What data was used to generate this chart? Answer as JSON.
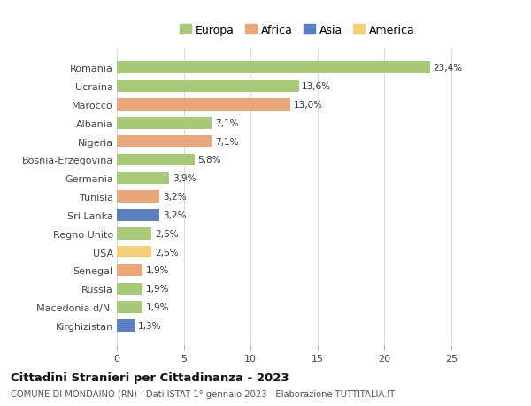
{
  "countries": [
    "Romania",
    "Ucraina",
    "Marocco",
    "Albania",
    "Nigeria",
    "Bosnia-Erzegovina",
    "Germania",
    "Tunisia",
    "Sri Lanka",
    "Regno Unito",
    "USA",
    "Senegal",
    "Russia",
    "Macedonia d/N.",
    "Kirghizistan"
  ],
  "values": [
    23.4,
    13.6,
    13.0,
    7.1,
    7.1,
    5.8,
    3.9,
    3.2,
    3.2,
    2.6,
    2.6,
    1.9,
    1.9,
    1.9,
    1.3
  ],
  "labels": [
    "23,4%",
    "13,6%",
    "13,0%",
    "7,1%",
    "7,1%",
    "5,8%",
    "3,9%",
    "3,2%",
    "3,2%",
    "2,6%",
    "2,6%",
    "1,9%",
    "1,9%",
    "1,9%",
    "1,3%"
  ],
  "continents": [
    "Europa",
    "Europa",
    "Africa",
    "Europa",
    "Africa",
    "Europa",
    "Europa",
    "Africa",
    "Asia",
    "Europa",
    "America",
    "Africa",
    "Europa",
    "Europa",
    "Asia"
  ],
  "colors": {
    "Europa": "#a8c87a",
    "Africa": "#e8a87c",
    "Asia": "#5b7fbf",
    "America": "#f5d07a"
  },
  "legend_order": [
    "Europa",
    "Africa",
    "Asia",
    "America"
  ],
  "title": "Cittadini Stranieri per Cittadinanza - 2023",
  "subtitle": "COMUNE DI MONDAINO (RN) - Dati ISTAT 1° gennaio 2023 - Elaborazione TUTTITALIA.IT",
  "xlim": [
    0,
    27
  ],
  "xticks": [
    0,
    5,
    10,
    15,
    20,
    25
  ],
  "background_color": "#ffffff",
  "bar_height": 0.65,
  "grid_color": "#dddddd"
}
